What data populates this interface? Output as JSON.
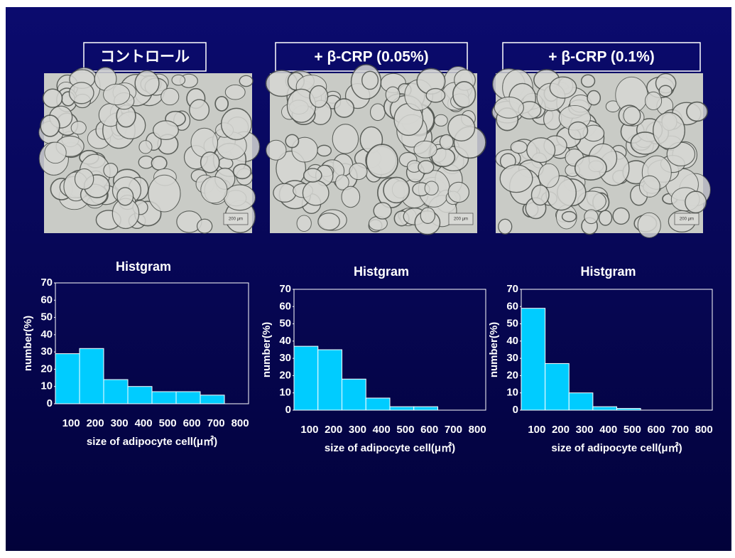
{
  "panels": [
    {
      "label": "コントロール",
      "scale_label": "200 μm"
    },
    {
      "label": "+ β-CRP (0.05%)",
      "scale_label": "200 μm"
    },
    {
      "label": "+ β-CRP (0.1%)",
      "scale_label": "200 μm"
    }
  ],
  "chart_data": [
    {
      "type": "bar",
      "title": "Histgram",
      "y_label": "number(%)",
      "x_label": "size of adipocyte cell(μ㎡)",
      "categories": [
        "100",
        "200",
        "300",
        "400",
        "500",
        "600",
        "700",
        "800"
      ],
      "values": [
        29,
        32,
        14,
        10,
        7,
        7,
        5,
        0
      ],
      "color": "#00ccff",
      "ylim": [
        0,
        70
      ],
      "yticks": [
        0,
        10,
        20,
        30,
        40,
        50,
        60,
        70
      ]
    },
    {
      "type": "bar",
      "title": "Histgram",
      "y_label": "number(%)",
      "x_label": "size of adipocyte cell(μ㎡)",
      "categories": [
        "100",
        "200",
        "300",
        "400",
        "500",
        "600",
        "700",
        "800"
      ],
      "values": [
        37,
        35,
        18,
        7,
        2,
        2,
        0,
        0
      ],
      "color": "#00ccff",
      "ylim": [
        0,
        70
      ],
      "yticks": [
        0,
        10,
        20,
        30,
        40,
        50,
        60,
        70
      ]
    },
    {
      "type": "bar",
      "title": "Histgram",
      "y_label": "number(%)",
      "x_label": "size of adipocyte cell(μ㎡)",
      "categories": [
        "100",
        "200",
        "300",
        "400",
        "500",
        "600",
        "700",
        "800"
      ],
      "values": [
        59,
        27,
        10,
        2,
        1,
        0,
        0,
        0
      ],
      "color": "#00ccff",
      "ylim": [
        0,
        70
      ],
      "yticks": [
        0,
        10,
        20,
        30,
        40,
        50,
        60,
        70
      ]
    }
  ]
}
